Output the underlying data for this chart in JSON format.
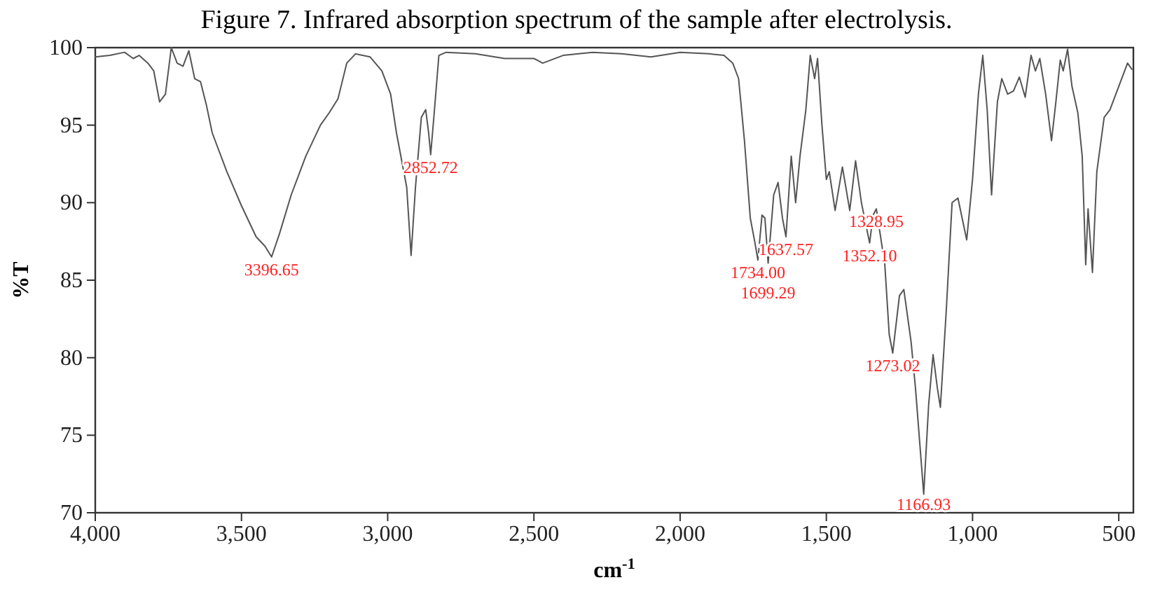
{
  "chart_data": {
    "type": "line",
    "title": "Figure 7. Infrared absorption spectrum of the sample after electrolysis.",
    "xlabel": "cm$^{-1}$",
    "ylabel": "%T",
    "xlim": [
      4000,
      450
    ],
    "ylim": [
      70,
      100
    ],
    "xticks": [
      {
        "value": 4000,
        "label": "4,000"
      },
      {
        "value": 3500,
        "label": "3,500"
      },
      {
        "value": 3000,
        "label": "3,000"
      },
      {
        "value": 2500,
        "label": "2,500"
      },
      {
        "value": 2000,
        "label": "2,000"
      },
      {
        "value": 1500,
        "label": "1,500"
      },
      {
        "value": 1000,
        "label": "1,000"
      },
      500
    ],
    "yticks": [
      70,
      75,
      80,
      85,
      90,
      95,
      100
    ],
    "grid": false,
    "marker": "none",
    "line_style": "solid",
    "series": [
      {
        "color": "#555555",
        "x": [
          4000,
          3950,
          3900,
          3870,
          3850,
          3820,
          3800,
          3780,
          3760,
          3740,
          3720,
          3700,
          3680,
          3660,
          3640,
          3620,
          3600,
          3550,
          3500,
          3450,
          3420,
          3397,
          3370,
          3330,
          3280,
          3230,
          3200,
          3170,
          3140,
          3110,
          3060,
          3020,
          2990,
          2970,
          2950,
          2935,
          2920,
          2905,
          2885,
          2870,
          2860,
          2853,
          2840,
          2825,
          2800,
          2700,
          2600,
          2500,
          2470,
          2400,
          2300,
          2200,
          2100,
          2000,
          1900,
          1850,
          1820,
          1800,
          1780,
          1760,
          1745,
          1734,
          1720,
          1710,
          1699,
          1680,
          1665,
          1650,
          1638,
          1620,
          1605,
          1590,
          1570,
          1555,
          1540,
          1530,
          1515,
          1500,
          1490,
          1470,
          1445,
          1420,
          1400,
          1380,
          1352,
          1340,
          1329,
          1300,
          1285,
          1273,
          1250,
          1235,
          1210,
          1195,
          1167,
          1150,
          1135,
          1120,
          1110,
          1090,
          1070,
          1050,
          1020,
          1000,
          980,
          965,
          950,
          935,
          915,
          900,
          880,
          860,
          840,
          820,
          800,
          785,
          770,
          750,
          730,
          715,
          700,
          690,
          675,
          660,
          640,
          625,
          613,
          605,
          590,
          575,
          550,
          530,
          500,
          470,
          455
        ],
        "values": [
          99.4,
          99.5,
          99.7,
          99.3,
          99.5,
          99.0,
          98.5,
          96.5,
          97.0,
          100.0,
          99.0,
          98.8,
          99.8,
          98.0,
          97.8,
          96.3,
          94.5,
          92.0,
          89.8,
          87.8,
          87.2,
          86.5,
          88.0,
          90.5,
          93.0,
          95.0,
          95.8,
          96.7,
          99.0,
          99.6,
          99.4,
          98.5,
          97.0,
          94.5,
          92.5,
          91.0,
          86.6,
          91.0,
          95.5,
          96.0,
          94.5,
          93.1,
          96.0,
          99.5,
          99.7,
          99.6,
          99.3,
          99.3,
          99.0,
          99.5,
          99.7,
          99.6,
          99.4,
          99.7,
          99.6,
          99.5,
          99.0,
          98.0,
          94.0,
          89.0,
          87.5,
          86.3,
          89.2,
          89.0,
          86.1,
          90.5,
          91.3,
          89.0,
          87.8,
          93.0,
          90.0,
          93.0,
          96.0,
          99.5,
          98.0,
          99.3,
          95.0,
          91.5,
          92.0,
          89.5,
          92.3,
          89.5,
          92.7,
          90.0,
          87.4,
          89.2,
          89.6,
          86.0,
          81.5,
          80.3,
          84.0,
          84.4,
          81.0,
          78.0,
          71.2,
          77.0,
          80.2,
          78.0,
          76.8,
          83.0,
          90.0,
          90.3,
          87.6,
          91.5,
          97.0,
          99.5,
          96.0,
          90.5,
          96.5,
          98.0,
          97.0,
          97.2,
          98.1,
          96.8,
          99.5,
          98.5,
          99.3,
          97.0,
          94.0,
          96.5,
          99.2,
          98.5,
          99.9,
          97.5,
          95.8,
          93.0,
          86.0,
          89.6,
          85.5,
          92.0,
          95.5,
          96.0,
          97.5,
          99.0,
          98.6
        ]
      }
    ],
    "annotations": [
      {
        "text": "3396.65",
        "x": 3397,
        "y": 86.5
      },
      {
        "text": "2852.72",
        "x": 2853,
        "y": 93.1
      },
      {
        "text": "1734.00",
        "x": 1734,
        "y": 86.3
      },
      {
        "text": "1699.29",
        "x": 1699,
        "y": 86.1
      },
      {
        "text": "1637.57",
        "x": 1638,
        "y": 87.8
      },
      {
        "text": "1352.10",
        "x": 1352,
        "y": 87.4
      },
      {
        "text": "1328.95",
        "x": 1329,
        "y": 89.6
      },
      {
        "text": "1273.02",
        "x": 1273,
        "y": 80.3
      },
      {
        "text": "1166.93",
        "x": 1167,
        "y": 71.2
      }
    ]
  }
}
